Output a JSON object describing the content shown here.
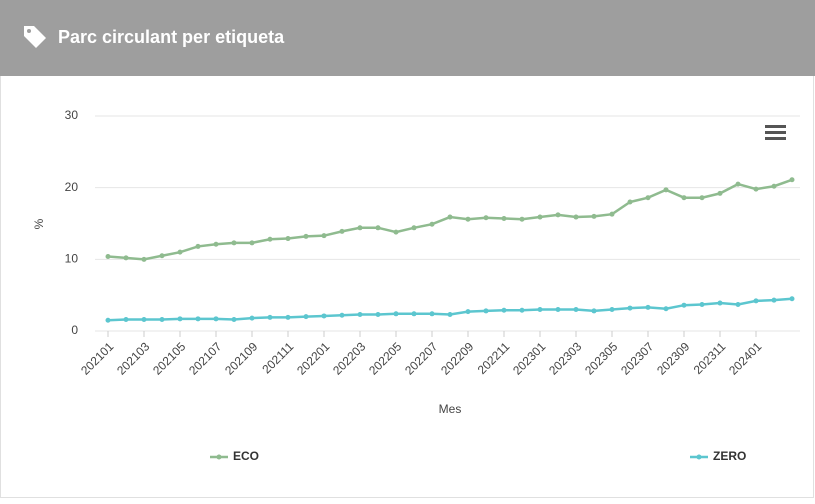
{
  "chart_data": {
    "type": "line",
    "title": "Parc circulant per etiqueta",
    "x_label": "Mes",
    "y_label": "%",
    "categories": [
      "202101",
      null,
      "202103",
      null,
      "202105",
      null,
      "202107",
      null,
      "202109",
      null,
      "202111",
      null,
      "202201",
      null,
      "202203",
      null,
      "202205",
      null,
      "202207",
      null,
      "202209",
      null,
      "202211",
      null,
      "202301",
      null,
      "202303",
      null,
      "202305",
      null,
      "202307",
      null,
      "202309",
      null,
      "202311",
      null,
      "202401",
      null,
      null
    ],
    "series": [
      {
        "name": "ECO",
        "color": "#8fbb8f",
        "values": [
          10.4,
          10.2,
          10.0,
          10.5,
          11.0,
          11.8,
          12.1,
          12.3,
          12.3,
          12.8,
          12.9,
          13.2,
          13.3,
          13.9,
          14.4,
          14.4,
          13.8,
          14.4,
          14.9,
          15.9,
          15.6,
          15.8,
          15.7,
          15.6,
          15.9,
          16.2,
          15.9,
          16.0,
          16.3,
          18.0,
          18.6,
          19.7,
          18.6,
          18.6,
          19.2,
          20.5,
          19.8,
          20.2,
          21.1
        ]
      },
      {
        "name": "ZERO",
        "color": "#5cc6cf",
        "values": [
          1.5,
          1.6,
          1.6,
          1.6,
          1.7,
          1.7,
          1.7,
          1.6,
          1.8,
          1.9,
          1.9,
          2.0,
          2.1,
          2.2,
          2.3,
          2.3,
          2.4,
          2.4,
          2.4,
          2.3,
          2.7,
          2.8,
          2.9,
          2.9,
          3.0,
          3.0,
          3.0,
          2.8,
          3.0,
          3.2,
          3.3,
          3.1,
          3.6,
          3.7,
          3.9,
          3.7,
          4.2,
          4.3,
          4.5
        ]
      }
    ],
    "ylim": [
      0,
      30
    ],
    "yticks": [
      0,
      10,
      20,
      30
    ],
    "grid": true
  }
}
